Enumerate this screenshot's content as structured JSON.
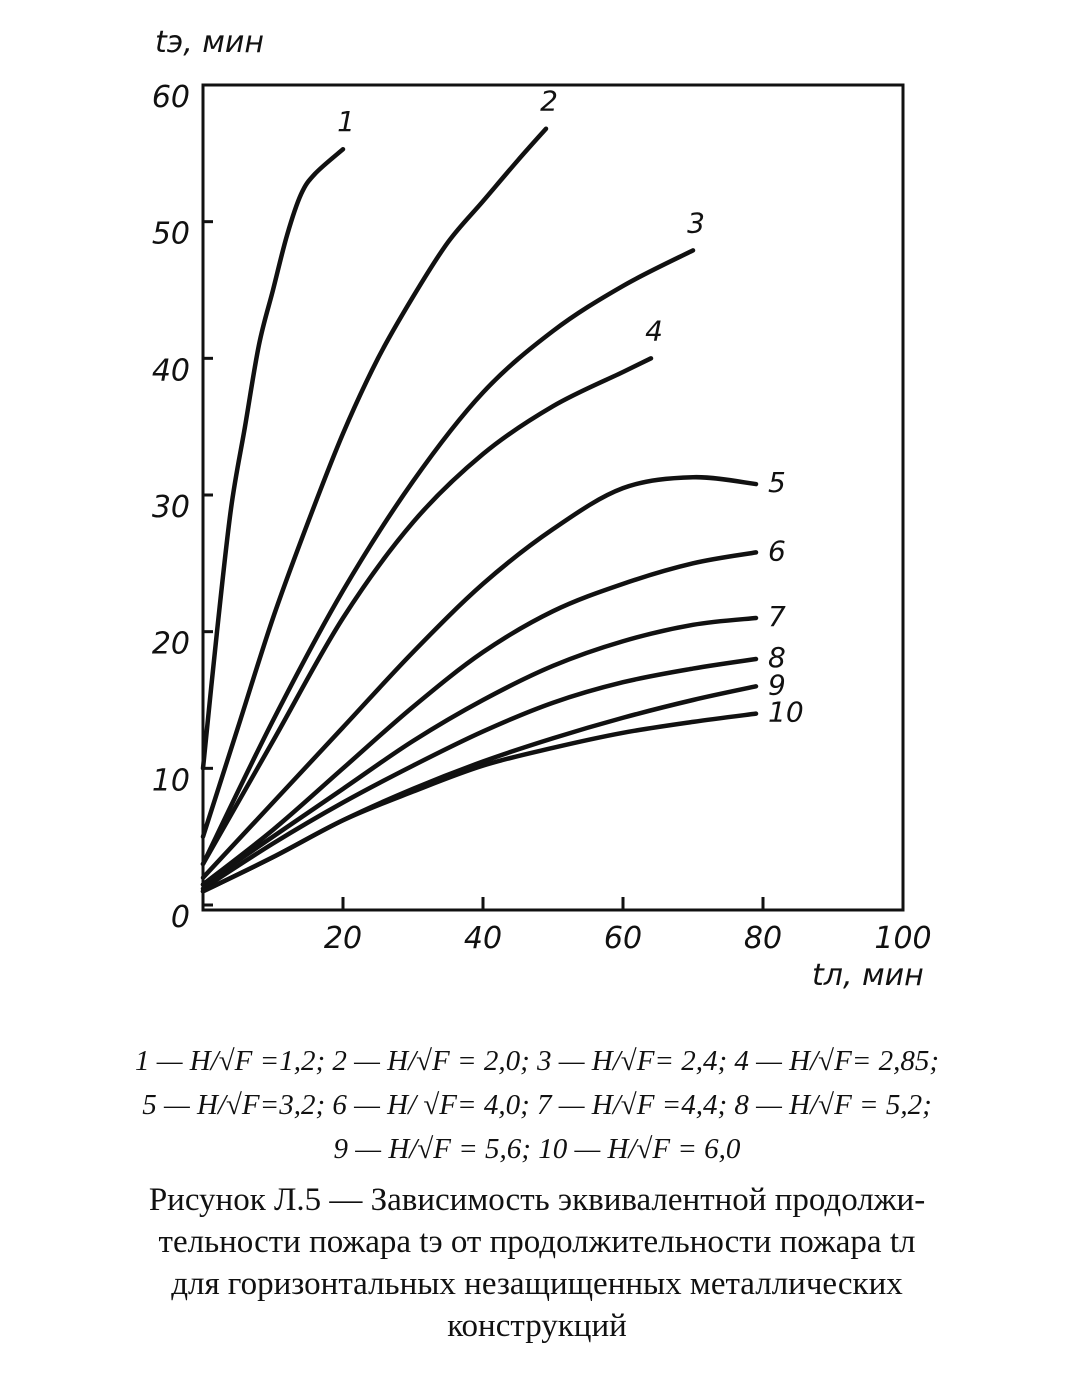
{
  "chart_data": {
    "type": "line",
    "y_label": "tэ, мин",
    "x_label": "tл, мин",
    "xlim": [
      0,
      100
    ],
    "ylim": [
      0,
      60
    ],
    "xticks": [
      20,
      40,
      60,
      80,
      100
    ],
    "yticks": [
      0,
      10,
      20,
      30,
      40,
      50,
      60
    ],
    "color": "#111111",
    "series": [
      {
        "name": "1",
        "x": [
          0,
          2,
          4,
          6,
          8,
          10,
          12,
          14,
          16,
          20
        ],
        "values": [
          10,
          20,
          29,
          35,
          41,
          45,
          49,
          52,
          53.5,
          55.3
        ]
      },
      {
        "name": "2",
        "x": [
          0,
          5,
          10,
          15,
          20,
          25,
          30,
          35,
          40,
          45,
          49
        ],
        "values": [
          5,
          13,
          21,
          28,
          34.5,
          40,
          44.5,
          48.5,
          51.5,
          54.5,
          56.8
        ]
      },
      {
        "name": "3",
        "x": [
          0,
          10,
          20,
          30,
          40,
          50,
          60,
          70
        ],
        "values": [
          3,
          13.5,
          23,
          31,
          37.5,
          42,
          45.3,
          47.9
        ]
      },
      {
        "name": "4",
        "x": [
          0,
          10,
          20,
          30,
          40,
          50,
          60,
          64
        ],
        "values": [
          3,
          12,
          21,
          28,
          33,
          36.5,
          39,
          40
        ]
      },
      {
        "name": "5",
        "x": [
          0,
          10,
          20,
          30,
          40,
          50,
          60,
          70,
          79
        ],
        "values": [
          2,
          7.5,
          13,
          18.5,
          23.5,
          27.5,
          30.5,
          31.3,
          30.8
        ]
      },
      {
        "name": "6",
        "x": [
          0,
          10,
          20,
          30,
          40,
          50,
          60,
          70,
          79
        ],
        "values": [
          1.5,
          5.5,
          10,
          14.5,
          18.5,
          21.5,
          23.5,
          25,
          25.8
        ]
      },
      {
        "name": "7",
        "x": [
          0,
          10,
          20,
          30,
          40,
          50,
          60,
          70,
          79
        ],
        "values": [
          1.5,
          5,
          8.5,
          12,
          15,
          17.5,
          19.3,
          20.5,
          21
        ]
      },
      {
        "name": "8",
        "x": [
          0,
          10,
          20,
          30,
          40,
          50,
          60,
          70,
          79
        ],
        "values": [
          1.2,
          4.5,
          7.5,
          10.2,
          12.7,
          14.8,
          16.3,
          17.3,
          18
        ]
      },
      {
        "name": "9",
        "x": [
          0,
          10,
          20,
          30,
          40,
          50,
          60,
          70,
          79
        ],
        "values": [
          1,
          3.5,
          6.2,
          8.5,
          10.5,
          12.2,
          13.7,
          15,
          16
        ]
      },
      {
        "name": "10",
        "x": [
          0,
          10,
          20,
          30,
          40,
          50,
          60,
          70,
          79
        ],
        "values": [
          1,
          3.5,
          6.2,
          8.3,
          10.2,
          11.5,
          12.6,
          13.4,
          14
        ]
      }
    ],
    "legend_lines": [
      "1 — H/√F =1,2;  2 — H/√F = 2,0;  3 — H/√F= 2,4;  4 — H/√F= 2,85;",
      "5 — H/√F=3,2;  6 — H/ √F= 4,0;  7 — H/√F =4,4;  8 — H/√F = 5,2;",
      "9 — H/√F = 5,6;  10 — H/√F = 6,0"
    ],
    "caption": [
      "Рисунок  Л.5 — Зависимость эквивалентной продолжи-",
      "тельности пожара tэ от продолжительности пожара tл",
      "для горизонтальных незащищенных металлических",
      "конструкций"
    ]
  }
}
